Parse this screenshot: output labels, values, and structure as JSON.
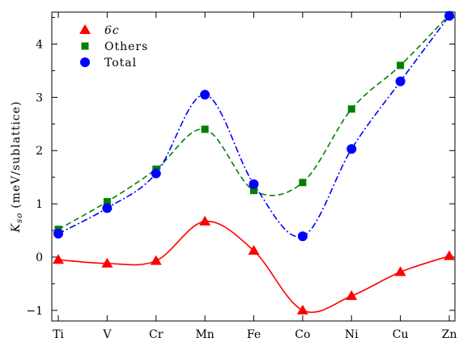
{
  "chart_data": {
    "type": "line",
    "categories": [
      "Ti",
      "V",
      "Cr",
      "Mn",
      "Fe",
      "Co",
      "Ni",
      "Cu",
      "Zn"
    ],
    "ylabel": {
      "symbol": "K",
      "subscript": "so",
      "unit": "(meV/sublattice)"
    },
    "ylim": [
      -1.2,
      4.6
    ],
    "yticks": [
      -1,
      0,
      1,
      2,
      3,
      4
    ],
    "ytick_labels": [
      "−1",
      "0",
      "1",
      "2",
      "3",
      "4"
    ],
    "grid": false,
    "legend_position": "top-left",
    "series": [
      {
        "name": "6c",
        "color": "#ff0000",
        "marker": "triangle",
        "line_style": "solid",
        "values": [
          -0.05,
          -0.12,
          -0.07,
          0.67,
          0.12,
          -1.0,
          -0.73,
          -0.28,
          0.02
        ]
      },
      {
        "name": "Others",
        "color": "#008000",
        "marker": "square",
        "line_style": "dashed",
        "values": [
          0.52,
          1.04,
          1.65,
          2.4,
          1.25,
          1.4,
          2.78,
          3.6,
          4.55
        ]
      },
      {
        "name": "Total",
        "color": "#0000ff",
        "marker": "circle",
        "line_style": "dashdot",
        "values": [
          0.44,
          0.92,
          1.57,
          3.05,
          1.37,
          0.39,
          2.03,
          3.3,
          4.53
        ]
      }
    ]
  }
}
